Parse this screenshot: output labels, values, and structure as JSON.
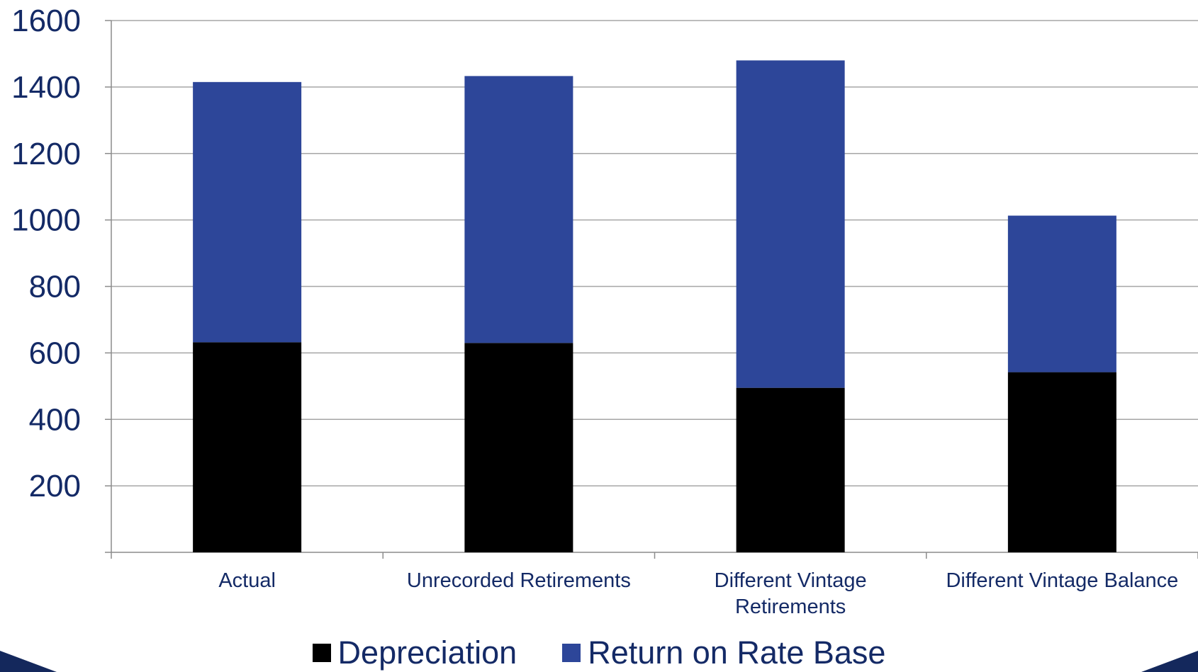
{
  "chart_data": {
    "type": "bar",
    "stacked": true,
    "categories": [
      "Actual",
      "Unrecorded Retirements",
      "Different Vintage Retirements",
      "Different Vintage Balance"
    ],
    "series": [
      {
        "name": "Depreciation",
        "values": [
          632,
          630,
          495,
          542
        ],
        "color": "#000000"
      },
      {
        "name": "Return on Rate Base",
        "values": [
          783,
          803,
          985,
          471
        ],
        "color": "#2d4699"
      }
    ],
    "ylim": [
      0,
      1600
    ],
    "yticks": [
      200,
      400,
      600,
      800,
      1000,
      1200,
      1400,
      1600
    ],
    "grid": true,
    "legend_position": "bottom",
    "title": "",
    "xlabel": "",
    "ylabel": ""
  },
  "style": {
    "axis_text_color": "#142a66",
    "grid_color": "#a6a6a6",
    "corner_color": "#14285c"
  }
}
